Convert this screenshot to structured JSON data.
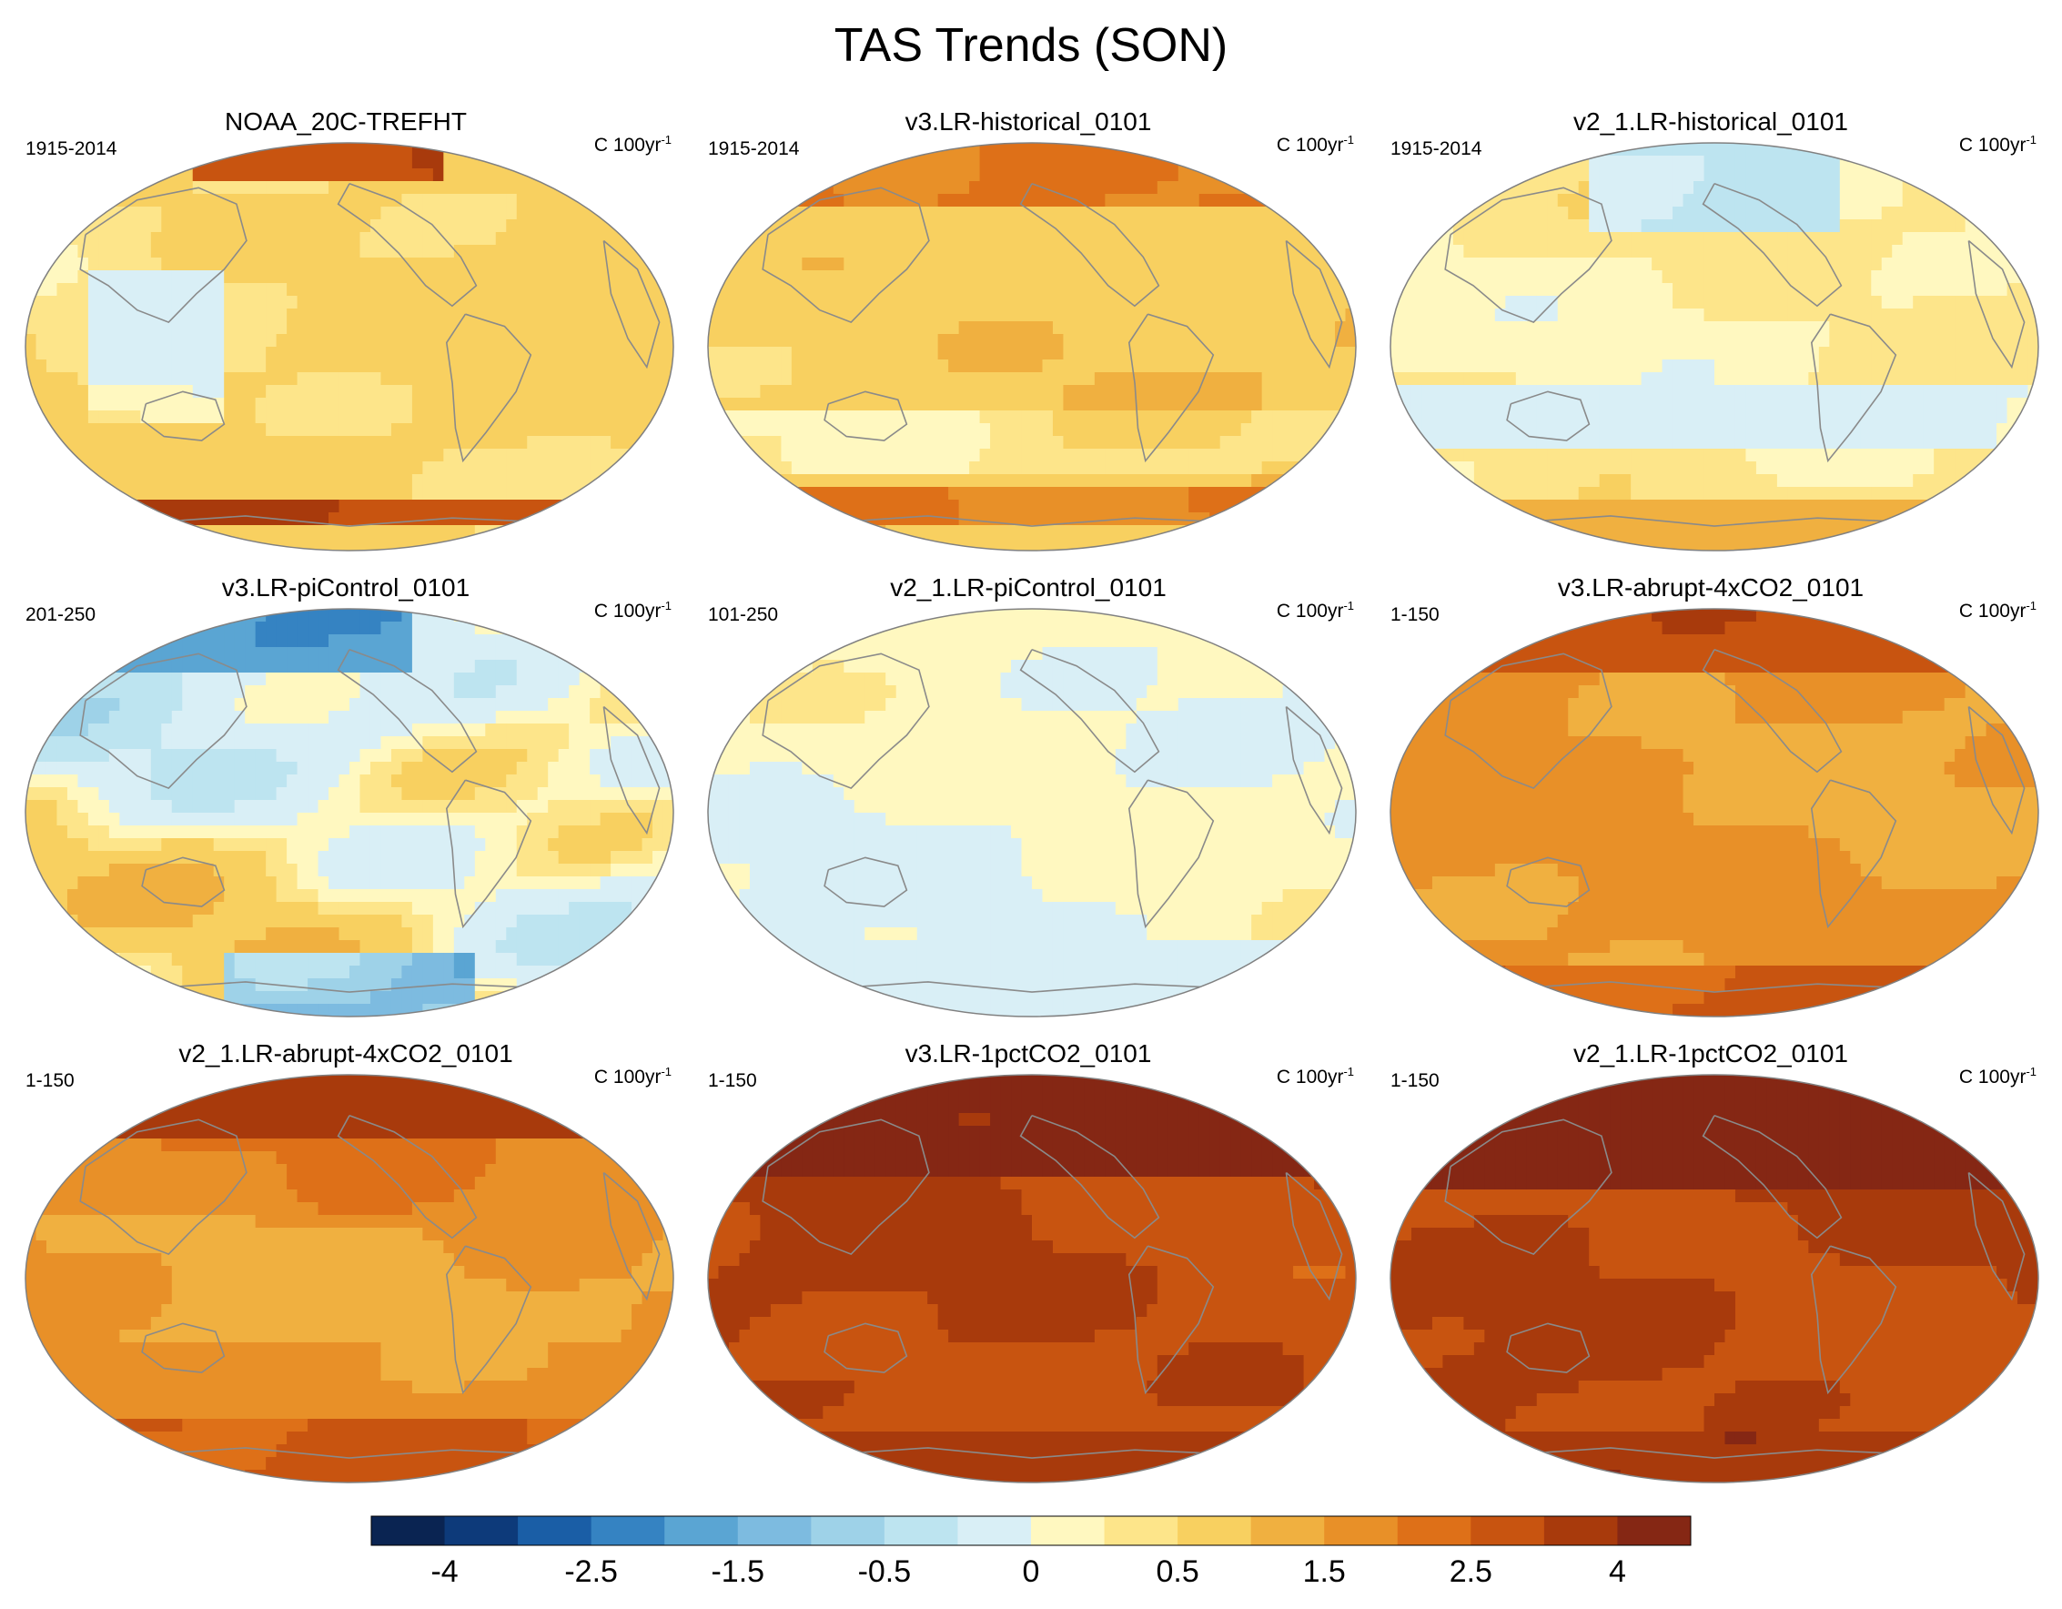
{
  "figure": {
    "title": "TAS Trends (SON)"
  },
  "panels": [
    {
      "title": "NOAA_20C-TREFHT",
      "period": "1915-2014",
      "units": "C 100yr",
      "units_exp": "-1",
      "field": "noaa"
    },
    {
      "title": "v3.LR-historical_0101",
      "period": "1915-2014",
      "units": "C 100yr",
      "units_exp": "-1",
      "field": "v3hist"
    },
    {
      "title": "v2_1.LR-historical_0101",
      "period": "1915-2014",
      "units": "C 100yr",
      "units_exp": "-1",
      "field": "v2hist"
    },
    {
      "title": "v3.LR-piControl_0101",
      "period": "201-250",
      "units": "C 100yr",
      "units_exp": "-1",
      "field": "v3pi"
    },
    {
      "title": "v2_1.LR-piControl_0101",
      "period": "101-250",
      "units": "C 100yr",
      "units_exp": "-1",
      "field": "v2pi"
    },
    {
      "title": "v3.LR-abrupt-4xCO2_0101",
      "period": "1-150",
      "units": "C 100yr",
      "units_exp": "-1",
      "field": "v3abrupt"
    },
    {
      "title": "v2_1.LR-abrupt-4xCO2_0101",
      "period": "1-150",
      "units": "C 100yr",
      "units_exp": "-1",
      "field": "v2abrupt"
    },
    {
      "title": "v3.LR-1pctCO2_0101",
      "period": "1-150",
      "units": "C 100yr",
      "units_exp": "-1",
      "field": "v3pct"
    },
    {
      "title": "v2_1.LR-1pctCO2_0101",
      "period": "1-150",
      "units": "C 100yr",
      "units_exp": "-1",
      "field": "v2pct"
    }
  ],
  "colorbar": {
    "colors": [
      "#0a2452",
      "#0d3a7a",
      "#1a5ea6",
      "#3583c2",
      "#5aa5d3",
      "#7dbbe0",
      "#9ed2e8",
      "#bde4f0",
      "#d9eff6",
      "#fff8c0",
      "#fde58a",
      "#f8d060",
      "#f0b040",
      "#e89028",
      "#de7018",
      "#c85410",
      "#a83a0c",
      "#852714"
    ],
    "labels": [
      "-4",
      "-2.5",
      "-1.5",
      "-0.5",
      "0",
      "0.5",
      "1.5",
      "2.5",
      "4"
    ]
  },
  "colors": {
    "coastline": "#8a8a8a",
    "outline": "#808080"
  }
}
